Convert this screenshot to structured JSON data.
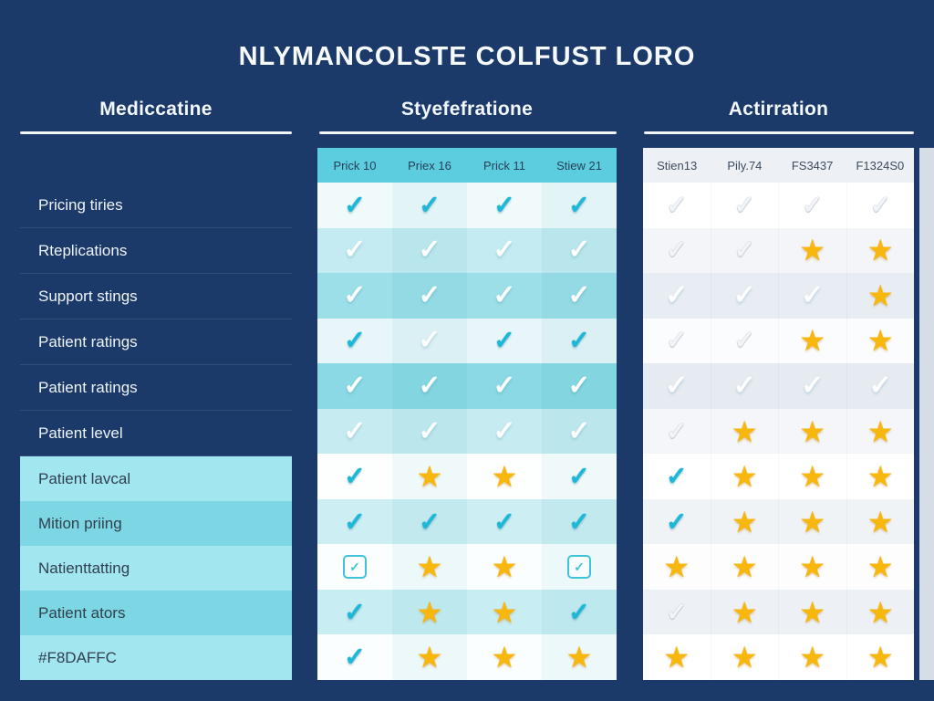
{
  "palette": {
    "background_navy": "#1b3a69",
    "table_header_cyan": "#5bcdde",
    "check_cyan": "#1db8d8",
    "star_yellow": "#f8b70d",
    "left_highlight_light": "#a2e6f0",
    "left_highlight_medium": "#7cd6e3"
  },
  "chart_data": {
    "type": "table",
    "title": "NLYMANCOLSTE COLFUST LORO",
    "sections": [
      {
        "title": "Mediccatine",
        "rows": [
          "Pricing tiries",
          "Rteplications",
          "Support stings",
          "Patient ratings",
          "Patient ratings",
          "Patient level",
          "Patient lavcal",
          "Mition priing",
          "Natienttatting",
          "Patient ators",
          "#F8DAFFC"
        ]
      },
      {
        "title": "Styefefratione",
        "columns": [
          "Prick 10",
          "Priex 16",
          "Prick 11",
          "Stiew 21"
        ],
        "cells": [
          [
            "check-cyan",
            "check-cyan",
            "check-cyan",
            "check-cyan"
          ],
          [
            "check-white",
            "check-white",
            "check-white",
            "check-white"
          ],
          [
            "check-white",
            "check-white",
            "check-white",
            "check-white"
          ],
          [
            "check-cyan",
            "check-white",
            "check-cyan",
            "check-cyan"
          ],
          [
            "check-white",
            "check-white",
            "check-white",
            "check-white"
          ],
          [
            "check-white",
            "check-white",
            "check-white",
            "check-white"
          ],
          [
            "check-cyan",
            "star",
            "star",
            "check-cyan"
          ],
          [
            "check-cyan",
            "check-cyan",
            "check-cyan",
            "check-cyan"
          ],
          [
            "checkbox",
            "star",
            "star",
            "checkbox"
          ],
          [
            "check-cyan",
            "star",
            "star",
            "check-cyan"
          ],
          [
            "check-cyan",
            "star",
            "star",
            "star"
          ]
        ]
      },
      {
        "title": "Actirration",
        "columns": [
          "Stien13",
          "Pily.74",
          "FS3437",
          "F1324S0"
        ],
        "cells": [
          [
            "check-gray",
            "check-gray",
            "check-gray",
            "check-gray"
          ],
          [
            "check-gray",
            "check-gray",
            "star",
            "star"
          ],
          [
            "check-white",
            "check-white",
            "check-white",
            "star"
          ],
          [
            "check-gray",
            "check-gray",
            "star",
            "star"
          ],
          [
            "check-white",
            "check-white",
            "check-white",
            "check-white"
          ],
          [
            "check-gray",
            "star",
            "star",
            "star"
          ],
          [
            "check-cyan",
            "star",
            "star",
            "star"
          ],
          [
            "check-cyan",
            "star",
            "star",
            "star"
          ],
          [
            "star",
            "star",
            "star",
            "star"
          ],
          [
            "check-gray",
            "star",
            "star",
            "star"
          ],
          [
            "star",
            "star",
            "star",
            "star"
          ]
        ]
      }
    ]
  }
}
